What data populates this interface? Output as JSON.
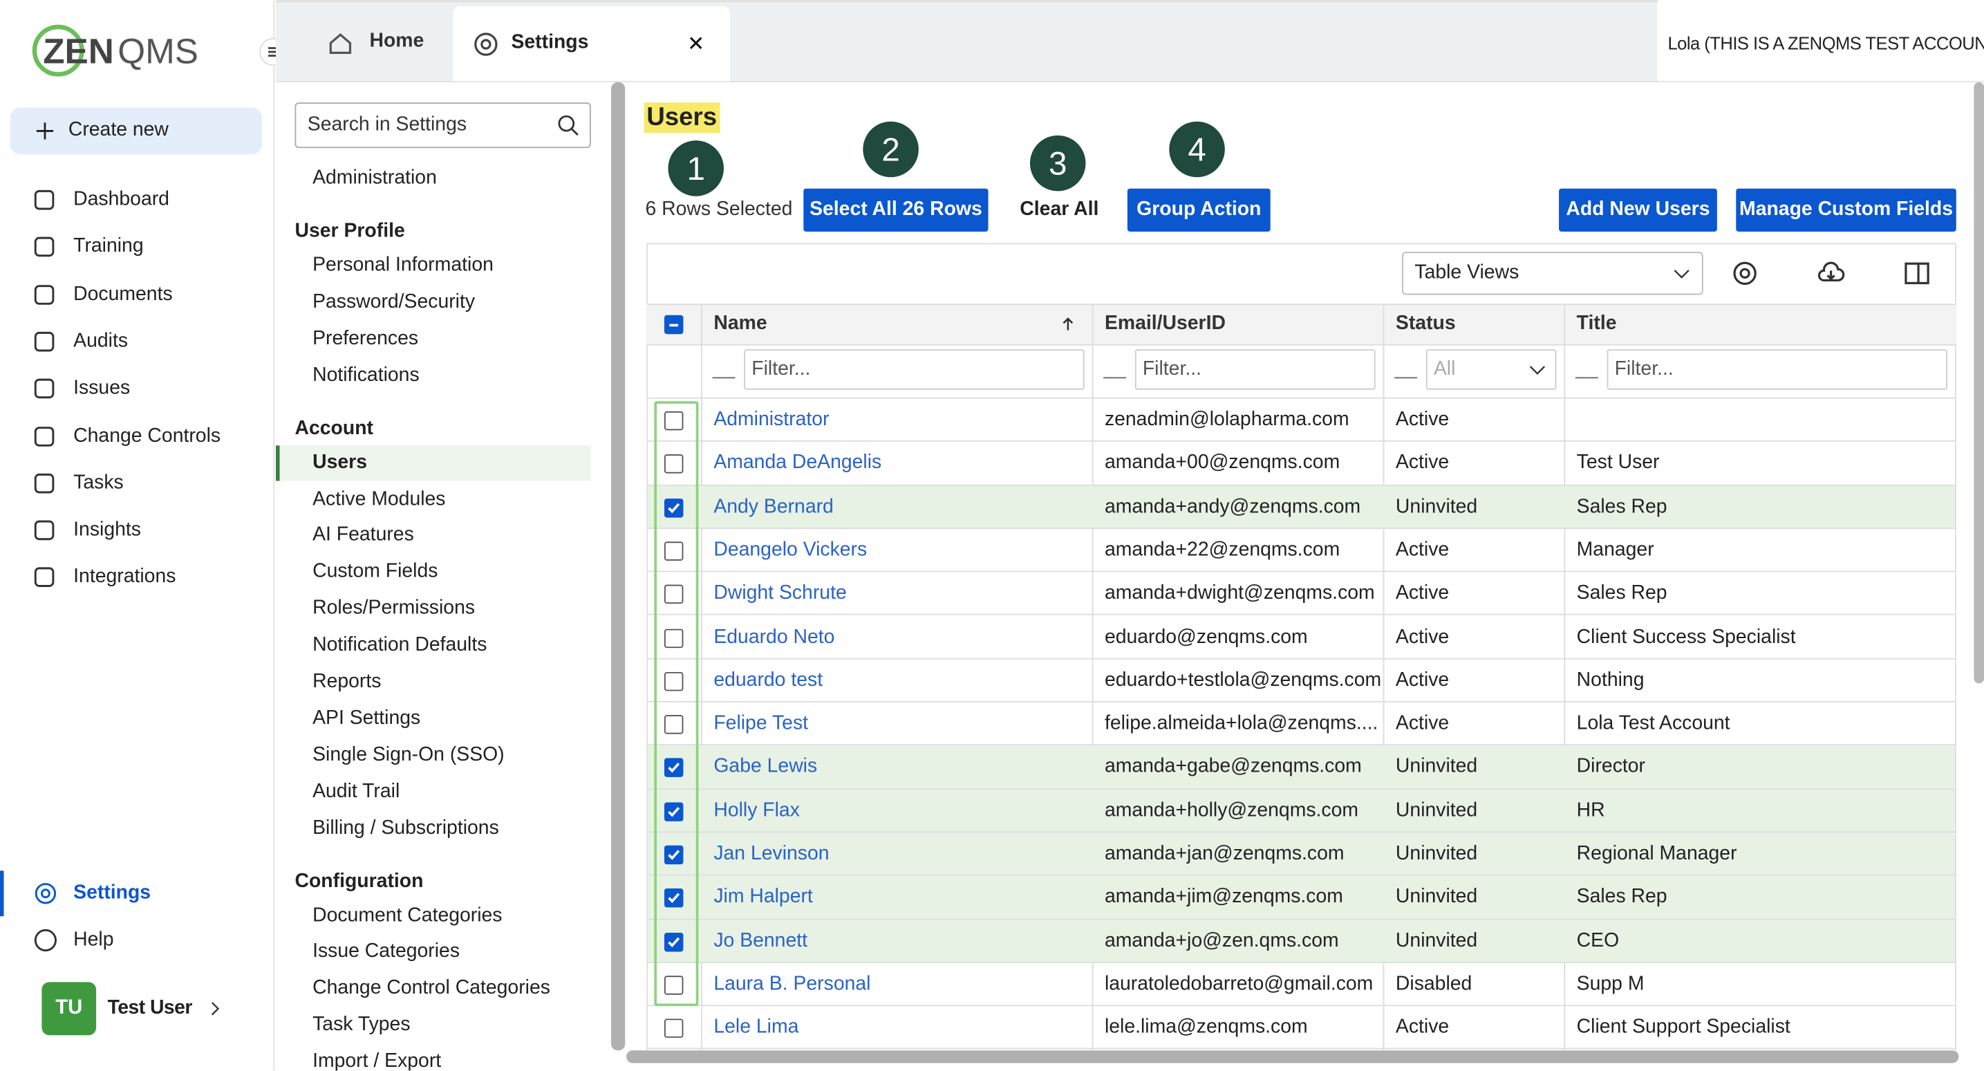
{
  "logo": {
    "left": "ZEN",
    "right": "QMS"
  },
  "nav": {
    "create": "Create new",
    "items": [
      "Dashboard",
      "Training",
      "Documents",
      "Audits",
      "Issues",
      "Change Controls",
      "Tasks",
      "Insights",
      "Integrations"
    ],
    "settings": "Settings",
    "help": "Help",
    "user_initials": "TU",
    "user_name": "Test User"
  },
  "tabs": [
    "Home",
    "Settings"
  ],
  "account": "Lola (THIS IS A ZENQMS TEST ACCOUNT)",
  "settings_menu": {
    "search_placeholder": "Search in Settings",
    "top": [
      "Administration"
    ],
    "sections": [
      {
        "title": "User Profile",
        "items": [
          "Personal Information",
          "Password/Security",
          "Preferences",
          "Notifications"
        ]
      },
      {
        "title": "Account",
        "active": 0,
        "items": [
          "Users",
          "Active Modules",
          "AI Features",
          "Custom Fields",
          "Roles/Permissions",
          "Notification Defaults",
          "Reports",
          "API Settings",
          "Single Sign-On (SSO)",
          "Audit Trail",
          "Billing / Subscriptions"
        ]
      },
      {
        "title": "Configuration",
        "items": [
          "Document Categories",
          "Issue Categories",
          "Change Control Categories",
          "Task Types",
          "Import / Export"
        ]
      }
    ]
  },
  "users": {
    "title": "Users",
    "steps": [
      "1",
      "2",
      "3",
      "4"
    ],
    "selected": "6 Rows Selected",
    "select_all": "Select All 26 Rows",
    "clear": "Clear All",
    "group_action": "Group Action",
    "add_new": "Add New Users",
    "manage_fields": "Manage Custom Fields",
    "table_views": "Table Views",
    "columns": [
      "Name",
      "Email/UserID",
      "Status",
      "Title"
    ],
    "filters": [
      "Filter...",
      "Filter...",
      "All",
      "Filter..."
    ],
    "rows": [
      {
        "name": "Administrator",
        "email": "zenadmin@lolapharma.com",
        "status": "Active",
        "title": null,
        "checked": false
      },
      {
        "name": "Amanda DeAngelis",
        "email": "amanda+00@zenqms.com",
        "status": "Active",
        "title": "Test User",
        "checked": false
      },
      {
        "name": "Andy Bernard",
        "email": "amanda+andy@zenqms.com",
        "status": "Uninvited",
        "title": "Sales Rep",
        "checked": true
      },
      {
        "name": "Deangelo Vickers",
        "email": "amanda+22@zenqms.com",
        "status": "Active",
        "title": "Manager",
        "checked": false
      },
      {
        "name": "Dwight Schrute",
        "email": "amanda+dwight@zenqms.com",
        "status": "Active",
        "title": "Sales Rep",
        "checked": false
      },
      {
        "name": "Eduardo Neto",
        "email": "eduardo@zenqms.com",
        "status": "Active",
        "title": "Client Success Specialist",
        "checked": false
      },
      {
        "name": "eduardo test",
        "email": "eduardo+testlola@zenqms.com",
        "status": "Active",
        "title": "Nothing",
        "checked": false
      },
      {
        "name": "Felipe Test",
        "email": "felipe.almeida+lola@zenqms....",
        "status": "Active",
        "title": "Lola Test Account",
        "checked": false
      },
      {
        "name": "Gabe Lewis",
        "email": "amanda+gabe@zenqms.com",
        "status": "Uninvited",
        "title": "Director",
        "checked": true
      },
      {
        "name": "Holly Flax",
        "email": "amanda+holly@zenqms.com",
        "status": "Uninvited",
        "title": "HR",
        "checked": true
      },
      {
        "name": "Jan Levinson",
        "email": "amanda+jan@zenqms.com",
        "status": "Uninvited",
        "title": "Regional Manager",
        "checked": true
      },
      {
        "name": "Jim Halpert",
        "email": "amanda+jim@zenqms.com",
        "status": "Uninvited",
        "title": "Sales Rep",
        "checked": true
      },
      {
        "name": "Jo Bennett",
        "email": "amanda+jo@zen.qms.com",
        "status": "Uninvited",
        "title": "CEO",
        "checked": true
      },
      {
        "name": "Laura B. Personal",
        "email": "lauratoledobarreto@gmail.com",
        "status": "Disabled",
        "title": "Supp M",
        "checked": false
      },
      {
        "name": "Lele Lima",
        "email": "lele.lima@zenqms.com",
        "status": "Active",
        "title": "Client Support Specialist",
        "checked": false
      }
    ]
  }
}
